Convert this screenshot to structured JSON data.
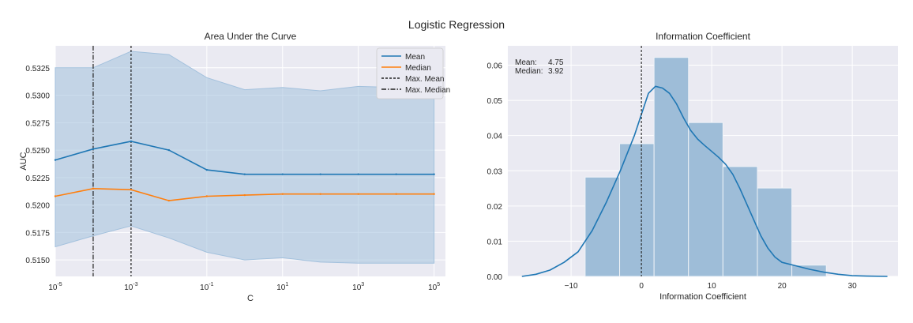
{
  "suptitle": "Logistic Regression",
  "chart_data": [
    {
      "type": "line",
      "title": "Area Under the Curve",
      "xlabel": "C",
      "ylabel": "AUC",
      "xscale": "log",
      "xlim_log10": [
        -5,
        5.3
      ],
      "ylim": [
        0.5135,
        0.5345
      ],
      "grid": true,
      "legend_position": "top-right",
      "x_log10": [
        -5,
        -4,
        -3,
        -2,
        -1,
        0,
        1,
        2,
        3,
        4,
        5
      ],
      "xticks": [
        {
          "log10": -5,
          "base": "10",
          "exp": "-5"
        },
        {
          "log10": -3,
          "base": "10",
          "exp": "-3"
        },
        {
          "log10": -1,
          "base": "10",
          "exp": "-1"
        },
        {
          "log10": 1,
          "base": "10",
          "exp": "1"
        },
        {
          "log10": 3,
          "base": "10",
          "exp": "3"
        },
        {
          "log10": 5,
          "base": "10",
          "exp": "5"
        }
      ],
      "yticks": [
        0.515,
        0.5175,
        0.52,
        0.5225,
        0.525,
        0.5275,
        0.53,
        0.5325
      ],
      "ytick_labels": [
        "0.5150",
        "0.5175",
        "0.5200",
        "0.5225",
        "0.5250",
        "0.5275",
        "0.5300",
        "0.5325"
      ],
      "band": {
        "upper": [
          0.5325,
          0.5325,
          0.534,
          0.5337,
          0.5316,
          0.5305,
          0.5307,
          0.5304,
          0.5308,
          0.5307,
          0.5307
        ],
        "lower": [
          0.5162,
          0.5172,
          0.5181,
          0.517,
          0.5157,
          0.515,
          0.5152,
          0.5148,
          0.5147,
          0.5147,
          0.5147
        ],
        "color": "#a3c1dd"
      },
      "series": [
        {
          "name": "Mean",
          "style": "solid",
          "color": "#1f77b4",
          "values": [
            0.5241,
            0.5251,
            0.5258,
            0.525,
            0.5232,
            0.5228,
            0.5228,
            0.5228,
            0.5228,
            0.5228,
            0.5228
          ]
        },
        {
          "name": "Median",
          "style": "solid",
          "color": "#ff7f0e",
          "values": [
            0.5208,
            0.5215,
            0.5214,
            0.5204,
            0.5208,
            0.5209,
            0.521,
            0.521,
            0.521,
            0.521,
            0.521
          ]
        }
      ],
      "vlines": [
        {
          "name": "Max. Mean",
          "style": "dashed",
          "color": "#222222",
          "x_log10": -3
        },
        {
          "name": "Max. Median",
          "style": "dashdot",
          "color": "#222222",
          "x_log10": -4
        }
      ]
    },
    {
      "type": "histogram",
      "title": "Information Coefficient",
      "xlabel": "Information Coefficient",
      "ylabel": "",
      "xlim": [
        -19,
        36.5
      ],
      "ylim": [
        0,
        0.0655
      ],
      "grid": true,
      "xticks": [
        -10,
        0,
        10,
        20,
        30
      ],
      "xtick_labels": [
        "−10",
        "0",
        "10",
        "20",
        "30"
      ],
      "yticks": [
        0.0,
        0.01,
        0.02,
        0.03,
        0.04,
        0.05,
        0.06
      ],
      "ytick_labels": [
        "0.00",
        "0.01",
        "0.02",
        "0.03",
        "0.04",
        "0.05",
        "0.06"
      ],
      "bins": [
        {
          "x0": -8.0,
          "x1": -3.1,
          "value": 0.0282
        },
        {
          "x0": -3.1,
          "x1": 1.8,
          "value": 0.0377
        },
        {
          "x0": 1.8,
          "x1": 6.7,
          "value": 0.0622
        },
        {
          "x0": 6.7,
          "x1": 11.6,
          "value": 0.0437
        },
        {
          "x0": 11.6,
          "x1": 16.5,
          "value": 0.0312
        },
        {
          "x0": 16.5,
          "x1": 21.4,
          "value": 0.0251
        },
        {
          "x0": 21.4,
          "x1": 26.3,
          "value": 0.0032
        }
      ],
      "bar_color": "#9ebdd8",
      "kde": {
        "color": "#1f77b4",
        "x": [
          -17,
          -15,
          -13,
          -11,
          -9,
          -7,
          -5,
          -3,
          -1,
          0,
          1,
          2,
          3,
          4,
          5,
          6,
          7,
          8,
          9,
          10,
          11,
          12,
          13,
          14,
          15,
          16,
          17,
          18,
          19,
          20,
          22,
          24,
          26,
          28,
          30,
          32,
          35
        ],
        "y": [
          0.0,
          0.0006,
          0.0018,
          0.004,
          0.007,
          0.013,
          0.021,
          0.03,
          0.04,
          0.046,
          0.052,
          0.054,
          0.0535,
          0.052,
          0.049,
          0.045,
          0.0415,
          0.039,
          0.0372,
          0.0355,
          0.0338,
          0.0318,
          0.029,
          0.025,
          0.0205,
          0.016,
          0.0115,
          0.008,
          0.0055,
          0.004,
          0.003,
          0.002,
          0.0012,
          0.0006,
          0.0002,
          0.0001,
          0.0
        ]
      },
      "vline": {
        "style": "dashed",
        "color": "#222222",
        "x": 0
      },
      "annotation": {
        "labels": [
          "Mean:",
          "Median:"
        ],
        "values": [
          "4.75",
          "3.92"
        ]
      }
    }
  ],
  "colors": {
    "plot_bg": "#eaeaf2",
    "grid": "#ffffff",
    "text": "#262626"
  }
}
